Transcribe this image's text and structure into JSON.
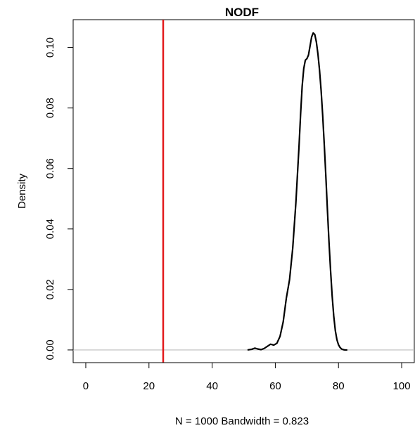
{
  "chart_data": {
    "type": "line",
    "title": "NODF",
    "xlabel": "N = 1000   Bandwidth = 0.823",
    "ylabel": "Density",
    "xlim": [
      -4,
      104
    ],
    "ylim": [
      -0.0042,
      0.1092
    ],
    "x_ticks": [
      0,
      20,
      40,
      60,
      80,
      100
    ],
    "x_tick_labels": [
      "0",
      "20",
      "40",
      "60",
      "80",
      "100"
    ],
    "y_ticks": [
      0.0,
      0.02,
      0.04,
      0.06,
      0.08,
      0.1
    ],
    "y_tick_labels": [
      "0.00",
      "0.02",
      "0.04",
      "0.06",
      "0.08",
      "0.10"
    ],
    "grid": false,
    "legend": false,
    "baseline": {
      "y": 0,
      "color": "#bebebe"
    },
    "reference_line": {
      "x": 24.5,
      "color": "#e31a1c"
    },
    "series": [
      {
        "color": "#000000",
        "x": [
          51.2,
          52.5,
          53.5,
          54.5,
          55.5,
          56.5,
          57.5,
          58.5,
          59.5,
          60.5,
          61.5,
          62.5,
          63.5,
          64.5,
          65.5,
          66.5,
          67.5,
          68.0,
          68.5,
          69.0,
          69.5,
          70.0,
          70.5,
          71.0,
          71.5,
          72.0,
          72.5,
          73.0,
          73.5,
          74.0,
          74.5,
          75.0,
          75.5,
          76.0,
          76.5,
          77.0,
          77.5,
          78.0,
          78.5,
          79.0,
          79.5,
          80.0,
          80.5,
          81.0,
          81.5,
          82.0,
          82.8
        ],
        "y": [
          0.0,
          0.0002,
          0.0006,
          0.0003,
          0.0001,
          0.0005,
          0.0012,
          0.0019,
          0.0016,
          0.0022,
          0.0045,
          0.0093,
          0.0172,
          0.0232,
          0.0335,
          0.0485,
          0.0672,
          0.0778,
          0.0872,
          0.093,
          0.0958,
          0.0963,
          0.0975,
          0.1005,
          0.1035,
          0.1048,
          0.1043,
          0.1018,
          0.0978,
          0.0925,
          0.0858,
          0.0775,
          0.0679,
          0.0574,
          0.0462,
          0.0356,
          0.0261,
          0.0178,
          0.0112,
          0.0064,
          0.0034,
          0.0017,
          0.0008,
          0.0003,
          0.0001,
          0.0,
          0.0
        ]
      }
    ]
  }
}
